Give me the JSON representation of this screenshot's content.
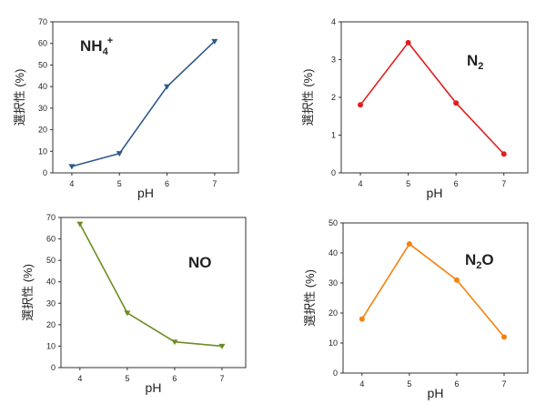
{
  "chart_data": [
    {
      "type": "line",
      "marker": "triangle-down",
      "color": "#2e5a8a",
      "ylabel": "選択性 (%)",
      "xlabel": "pH",
      "ylim": [
        0,
        70
      ],
      "xlim": [
        3.6,
        7.5
      ],
      "yticks": [
        0,
        10,
        20,
        30,
        40,
        50,
        60,
        70
      ],
      "xticks": [
        4,
        5,
        6,
        7
      ],
      "x": [
        4,
        5,
        6,
        7
      ],
      "values": [
        3,
        9,
        40,
        61
      ],
      "label": {
        "main": "NH",
        "sub": "4",
        "sup": "+"
      },
      "label_position": "top-left"
    },
    {
      "type": "line",
      "marker": "circle",
      "color": "#e01e1e",
      "ylabel": "選択性 (%)",
      "xlabel": "pH",
      "ylim": [
        0,
        4
      ],
      "xlim": [
        3.6,
        7.5
      ],
      "yticks": [
        0,
        1,
        2,
        3,
        4
      ],
      "xticks": [
        4,
        5,
        6,
        7
      ],
      "x": [
        4,
        5,
        6,
        7
      ],
      "values": [
        1.8,
        3.45,
        1.85,
        0.5
      ],
      "label": {
        "main": "N",
        "sub": "2",
        "sup": ""
      },
      "label_position": "top-right"
    },
    {
      "type": "line",
      "marker": "triangle-down",
      "color": "#6b8e23",
      "ylabel": "選択性 (%)",
      "xlabel": "pH",
      "ylim": [
        0,
        70
      ],
      "xlim": [
        3.6,
        7.5
      ],
      "yticks": [
        0,
        10,
        20,
        30,
        40,
        50,
        60,
        70
      ],
      "xticks": [
        4,
        5,
        6,
        7
      ],
      "x": [
        4,
        5,
        6,
        7
      ],
      "values": [
        67,
        25.5,
        12,
        10
      ],
      "label": {
        "main": "NO",
        "sub": "",
        "sup": ""
      },
      "label_position": "top-right"
    },
    {
      "type": "line",
      "marker": "circle",
      "color": "#f5820f",
      "ylabel": "選択性 (%)",
      "xlabel": "pH",
      "ylim": [
        0,
        50
      ],
      "xlim": [
        3.6,
        7.5
      ],
      "yticks": [
        0,
        10,
        20,
        30,
        40,
        50
      ],
      "xticks": [
        4,
        5,
        6,
        7
      ],
      "x": [
        4,
        5,
        6,
        7
      ],
      "values": [
        18,
        43,
        31,
        12
      ],
      "label": {
        "main": "N",
        "sub": "2",
        "sup": "O"
      },
      "label_position": "top-right"
    }
  ]
}
